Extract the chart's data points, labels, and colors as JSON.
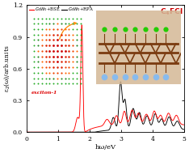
{
  "xlabel": "hω/eV",
  "ylabel": "ε$_2$(ω)/arb.units",
  "xlim": [
    0,
    5
  ],
  "ylim": [
    0.0,
    1.2
  ],
  "yticks": [
    0.0,
    0.3,
    0.6,
    0.9,
    1.2
  ],
  "xticks": [
    0,
    1,
    2,
    3,
    4,
    5
  ],
  "legend_bse": "$G_0W_0$+BSE",
  "legend_rpa": "$G_0W_0$+RPA",
  "bse_color": "#ff0000",
  "rpa_color": "#000000",
  "exciton_label": "exciton-1",
  "exciton_label_color": "#dd0000",
  "title_color": "#cc0000",
  "background_color": "#ffffff",
  "arrow_color": "#ff8800"
}
